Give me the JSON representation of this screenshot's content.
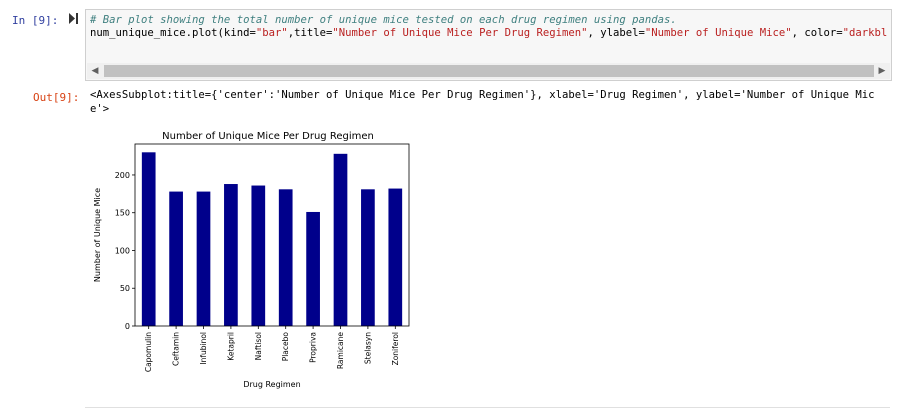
{
  "cell": {
    "input_prompt": "In [9]:",
    "output_prompt": "Out[9]:",
    "code_comment": "# Bar plot showing the total number of unique mice tested on each drug regimen using pandas.",
    "code": {
      "pre": "num_unique_mice.plot(kind=",
      "kind": "\"bar\"",
      "mid1": ",title=",
      "title": "\"Number of Unique Mice Per Drug Regimen\"",
      "mid2": ", ylabel=",
      "ylabel": "\"Number of Unique Mice\"",
      "mid3": ", color=",
      "color": "\"darkbl"
    },
    "output_text": "<AxesSubplot:title={'center':'Number of Unique Mice Per Drug Regimen'}, xlabel='Drug Regimen', ylabel='Number of Unique Mice'>"
  },
  "chart_data": {
    "type": "bar",
    "title": "Number of Unique Mice Per Drug Regimen",
    "xlabel": "Drug Regimen",
    "ylabel": "Number of Unique Mice",
    "categories": [
      "Capomulin",
      "Ceftamin",
      "Infubinol",
      "Ketapril",
      "Naftisol",
      "Placebo",
      "Propriva",
      "Ramicane",
      "Stelasyn",
      "Zoniferol"
    ],
    "values": [
      230,
      178,
      178,
      188,
      186,
      181,
      151,
      228,
      181,
      182
    ],
    "yticks": [
      0,
      50,
      100,
      150,
      200
    ],
    "ylim": [
      0,
      241
    ],
    "bar_color": "#00008b",
    "grid": false,
    "legend": "none"
  }
}
